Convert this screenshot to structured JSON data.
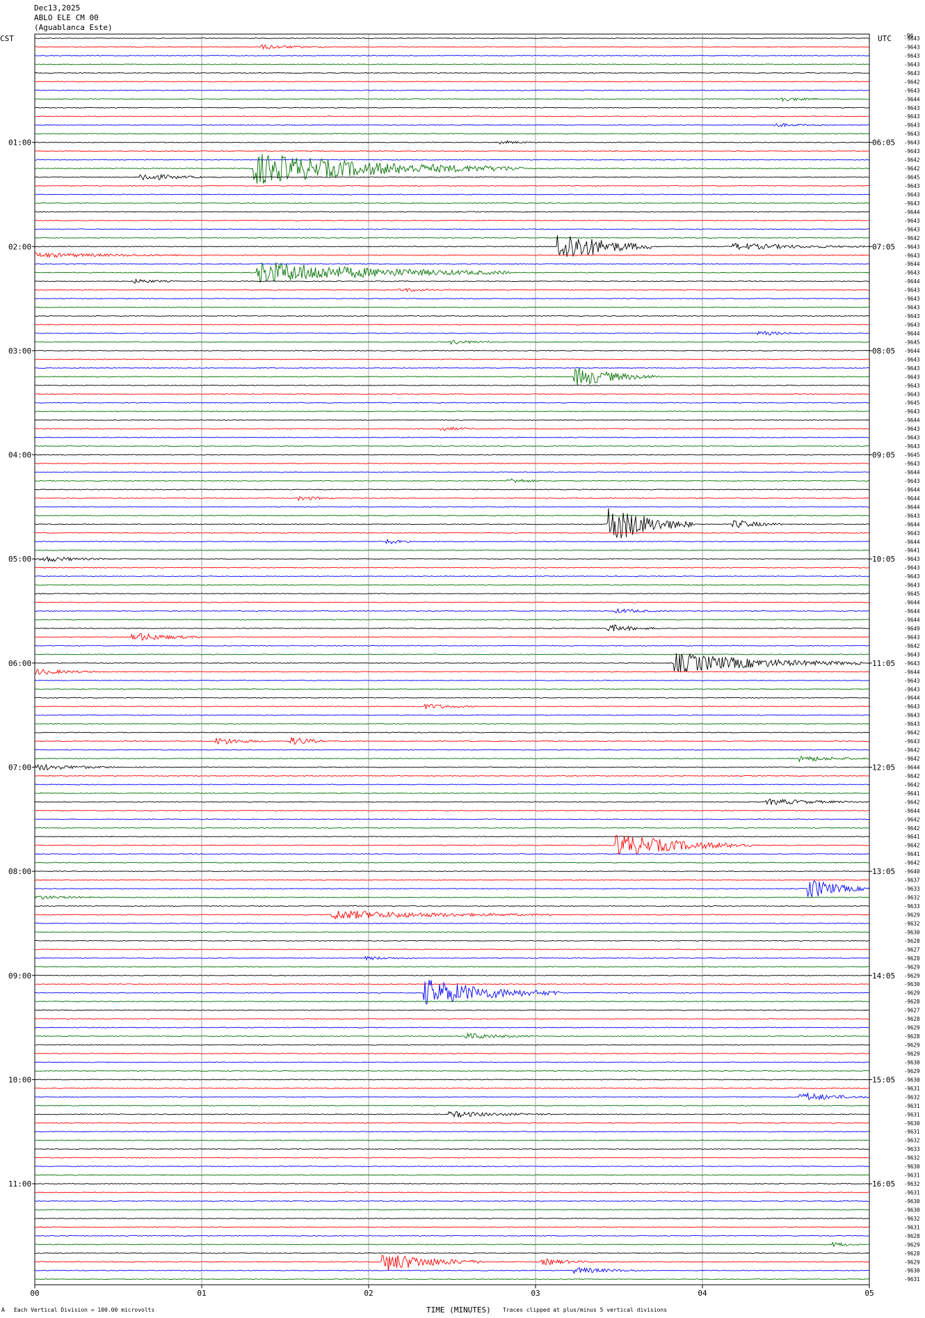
{
  "header": {
    "date": "Dec13,2025",
    "station": "ABLO ELE CM 00",
    "location": "(Aguablanca Este)"
  },
  "left_corner": "CST",
  "right_corner": "UTC",
  "top_right_label": "-96",
  "footer": {
    "mark": "A",
    "scale_note": "Each Vertical Division =  100.00 microvolts",
    "xlabel": "TIME (MINUTES)",
    "clip_note": "Traces clipped at plus/minus 5 vertical divisions"
  },
  "colors": {
    "trace_cycle": [
      "#000000",
      "#ff0000",
      "#0000ff",
      "#007000"
    ],
    "grid": "#808080"
  },
  "chart_data": {
    "type": "line",
    "title": "",
    "xlabel": "TIME (MINUTES)",
    "x_ticks": [
      "00",
      "01",
      "02",
      "03",
      "04",
      "05"
    ],
    "xlim": [
      0,
      5
    ],
    "row_count": 144,
    "row_duration_min": 5,
    "cst_hour_labels": [
      {
        "row": 12,
        "label": "01:00"
      },
      {
        "row": 24,
        "label": "02:00"
      },
      {
        "row": 36,
        "label": "03:00"
      },
      {
        "row": 48,
        "label": "04:00"
      },
      {
        "row": 60,
        "label": "05:00"
      },
      {
        "row": 72,
        "label": "06:00"
      },
      {
        "row": 84,
        "label": "07:00"
      },
      {
        "row": 96,
        "label": "08:00"
      },
      {
        "row": 108,
        "label": "09:00"
      },
      {
        "row": 120,
        "label": "10:00"
      },
      {
        "row": 132,
        "label": "11:00"
      }
    ],
    "utc_hour_labels": [
      {
        "row": 12,
        "label": "06:05"
      },
      {
        "row": 24,
        "label": "07:05"
      },
      {
        "row": 36,
        "label": "08:05"
      },
      {
        "row": 48,
        "label": "09:05"
      },
      {
        "row": 60,
        "label": "10:05"
      },
      {
        "row": 72,
        "label": "11:05"
      },
      {
        "row": 84,
        "label": "12:05"
      },
      {
        "row": 96,
        "label": "13:05"
      },
      {
        "row": 108,
        "label": "14:05"
      },
      {
        "row": 120,
        "label": "15:05"
      },
      {
        "row": 132,
        "label": "16:05"
      }
    ],
    "row_right_labels": [
      "-9643",
      "-9643",
      "-9643",
      "-9643",
      "-9643",
      "-9642",
      "-9643",
      "-9644",
      "-9643",
      "-9643",
      "-9643",
      "-9643",
      "-9643",
      "-9643",
      "-9642",
      "-9642",
      "-9645",
      "-9643",
      "-9643",
      "-9643",
      "-9644",
      "-9643",
      "-9643",
      "-9642",
      "-9643",
      "-9643",
      "-9644",
      "-9643",
      "-9644",
      "-9643",
      "-9643",
      "-9643",
      "-9643",
      "-9643",
      "-9644",
      "-9645",
      "-9644",
      "-9643",
      "-9643",
      "-9643",
      "-9643",
      "-9643",
      "-9645",
      "-9643",
      "-9644",
      "-9643",
      "-9643",
      "-9643",
      "-9645",
      "-9643",
      "-9644",
      "-9643",
      "-9644",
      "-9644",
      "-9644",
      "-9643",
      "-9644",
      "-9643",
      "-9644",
      "-9641",
      "-9643",
      "-9643",
      "-9643",
      "-9643",
      "-9645",
      "-9644",
      "-9644",
      "-9644",
      "-9649",
      "-9643",
      "-9642",
      "-9643",
      "-9643",
      "-9644",
      "-9643",
      "-9643",
      "-9644",
      "-9643",
      "-9643",
      "-9643",
      "-9642",
      "-9643",
      "-9642",
      "-9642",
      "-9644",
      "-9642",
      "-9642",
      "-9641",
      "-9642",
      "-9644",
      "-9642",
      "-9642",
      "-9641",
      "-9642",
      "-9641",
      "-9642",
      "-9640",
      "-9637",
      "-9633",
      "-9632",
      "-9633",
      "-9629",
      "-9632",
      "-9630",
      "-9628",
      "-9627",
      "-9628",
      "-9629",
      "-9629",
      "-9630",
      "-9629",
      "-9628",
      "-9627",
      "-9628",
      "-9629",
      "-9628",
      "-9629",
      "-9629",
      "-9630",
      "-9629",
      "-9630",
      "-9631",
      "-9632",
      "-9631",
      "-9631",
      "-9630",
      "-9631",
      "-9632",
      "-9633",
      "-9632",
      "-9630",
      "-9631",
      "-9632",
      "-9631",
      "-9630",
      "-9630",
      "-9632",
      "-9631",
      "-9628",
      "-9629",
      "-9628",
      "-9629",
      "-9630",
      "-9631"
    ],
    "events": [
      {
        "row": 1,
        "x_min": 1.37,
        "dur": 0.4,
        "amp": 0.4
      },
      {
        "row": 7,
        "x_min": 4.45,
        "dur": 0.25,
        "amp": 0.5
      },
      {
        "row": 10,
        "x_min": 4.45,
        "dur": 0.3,
        "amp": 0.3
      },
      {
        "row": 12,
        "x_min": 2.8,
        "dur": 0.2,
        "amp": 0.3
      },
      {
        "row": 15,
        "x_min": 1.33,
        "dur": 1.6,
        "amp": 3.5
      },
      {
        "row": 16,
        "x_min": 0.65,
        "dur": 0.35,
        "amp": 0.8
      },
      {
        "row": 24,
        "x_min": 3.15,
        "dur": 0.55,
        "amp": 3.5
      },
      {
        "row": 24,
        "x_min": 4.2,
        "dur": 0.8,
        "amp": 0.7
      },
      {
        "row": 25,
        "x_min": 0.0,
        "dur": 1.0,
        "amp": 0.5
      },
      {
        "row": 27,
        "x_min": 1.35,
        "dur": 1.5,
        "amp": 2.5
      },
      {
        "row": 28,
        "x_min": 0.6,
        "dur": 0.25,
        "amp": 0.4
      },
      {
        "row": 29,
        "x_min": 2.2,
        "dur": 0.3,
        "amp": 0.3
      },
      {
        "row": 34,
        "x_min": 4.35,
        "dur": 0.3,
        "amp": 0.4
      },
      {
        "row": 35,
        "x_min": 2.5,
        "dur": 0.3,
        "amp": 0.4
      },
      {
        "row": 39,
        "x_min": 3.25,
        "dur": 0.5,
        "amp": 2.0
      },
      {
        "row": 45,
        "x_min": 2.45,
        "dur": 0.2,
        "amp": 0.4
      },
      {
        "row": 51,
        "x_min": 2.85,
        "dur": 0.2,
        "amp": 0.5
      },
      {
        "row": 53,
        "x_min": 1.6,
        "dur": 0.2,
        "amp": 0.4
      },
      {
        "row": 56,
        "x_min": 3.45,
        "dur": 0.5,
        "amp": 4.0
      },
      {
        "row": 56,
        "x_min": 4.2,
        "dur": 0.3,
        "amp": 0.8
      },
      {
        "row": 58,
        "x_min": 2.1,
        "dur": 0.15,
        "amp": 0.5
      },
      {
        "row": 60,
        "x_min": 0.05,
        "dur": 0.4,
        "amp": 0.6
      },
      {
        "row": 66,
        "x_min": 3.5,
        "dur": 0.3,
        "amp": 0.4
      },
      {
        "row": 68,
        "x_min": 3.45,
        "dur": 0.3,
        "amp": 0.7
      },
      {
        "row": 69,
        "x_min": 0.6,
        "dur": 0.4,
        "amp": 0.9
      },
      {
        "row": 72,
        "x_min": 3.85,
        "dur": 1.1,
        "amp": 2.2
      },
      {
        "row": 73,
        "x_min": 0.0,
        "dur": 0.4,
        "amp": 0.6
      },
      {
        "row": 77,
        "x_min": 2.35,
        "dur": 0.3,
        "amp": 0.5
      },
      {
        "row": 81,
        "x_min": 1.1,
        "dur": 0.3,
        "amp": 0.7
      },
      {
        "row": 81,
        "x_min": 1.55,
        "dur": 0.2,
        "amp": 0.8
      },
      {
        "row": 83,
        "x_min": 4.6,
        "dur": 0.4,
        "amp": 0.6
      },
      {
        "row": 84,
        "x_min": 0.0,
        "dur": 0.5,
        "amp": 0.7
      },
      {
        "row": 88,
        "x_min": 4.4,
        "dur": 0.6,
        "amp": 0.6
      },
      {
        "row": 93,
        "x_min": 3.5,
        "dur": 0.8,
        "amp": 2.5
      },
      {
        "row": 98,
        "x_min": 4.65,
        "dur": 0.35,
        "amp": 2.0
      },
      {
        "row": 99,
        "x_min": 0.0,
        "dur": 0.4,
        "amp": 0.4
      },
      {
        "row": 101,
        "x_min": 1.8,
        "dur": 1.3,
        "amp": 1.0
      },
      {
        "row": 106,
        "x_min": 2.0,
        "dur": 0.3,
        "amp": 0.3
      },
      {
        "row": 110,
        "x_min": 2.35,
        "dur": 0.8,
        "amp": 3.0
      },
      {
        "row": 115,
        "x_min": 2.6,
        "dur": 0.4,
        "amp": 0.6
      },
      {
        "row": 122,
        "x_min": 4.6,
        "dur": 0.4,
        "amp": 0.9
      },
      {
        "row": 124,
        "x_min": 2.5,
        "dur": 0.6,
        "amp": 0.6
      },
      {
        "row": 139,
        "x_min": 4.8,
        "dur": 0.15,
        "amp": 0.4
      },
      {
        "row": 141,
        "x_min": 2.1,
        "dur": 0.6,
        "amp": 2.0
      },
      {
        "row": 141,
        "x_min": 3.05,
        "dur": 0.3,
        "amp": 0.6
      },
      {
        "row": 142,
        "x_min": 3.25,
        "dur": 0.4,
        "amp": 0.6
      }
    ]
  }
}
